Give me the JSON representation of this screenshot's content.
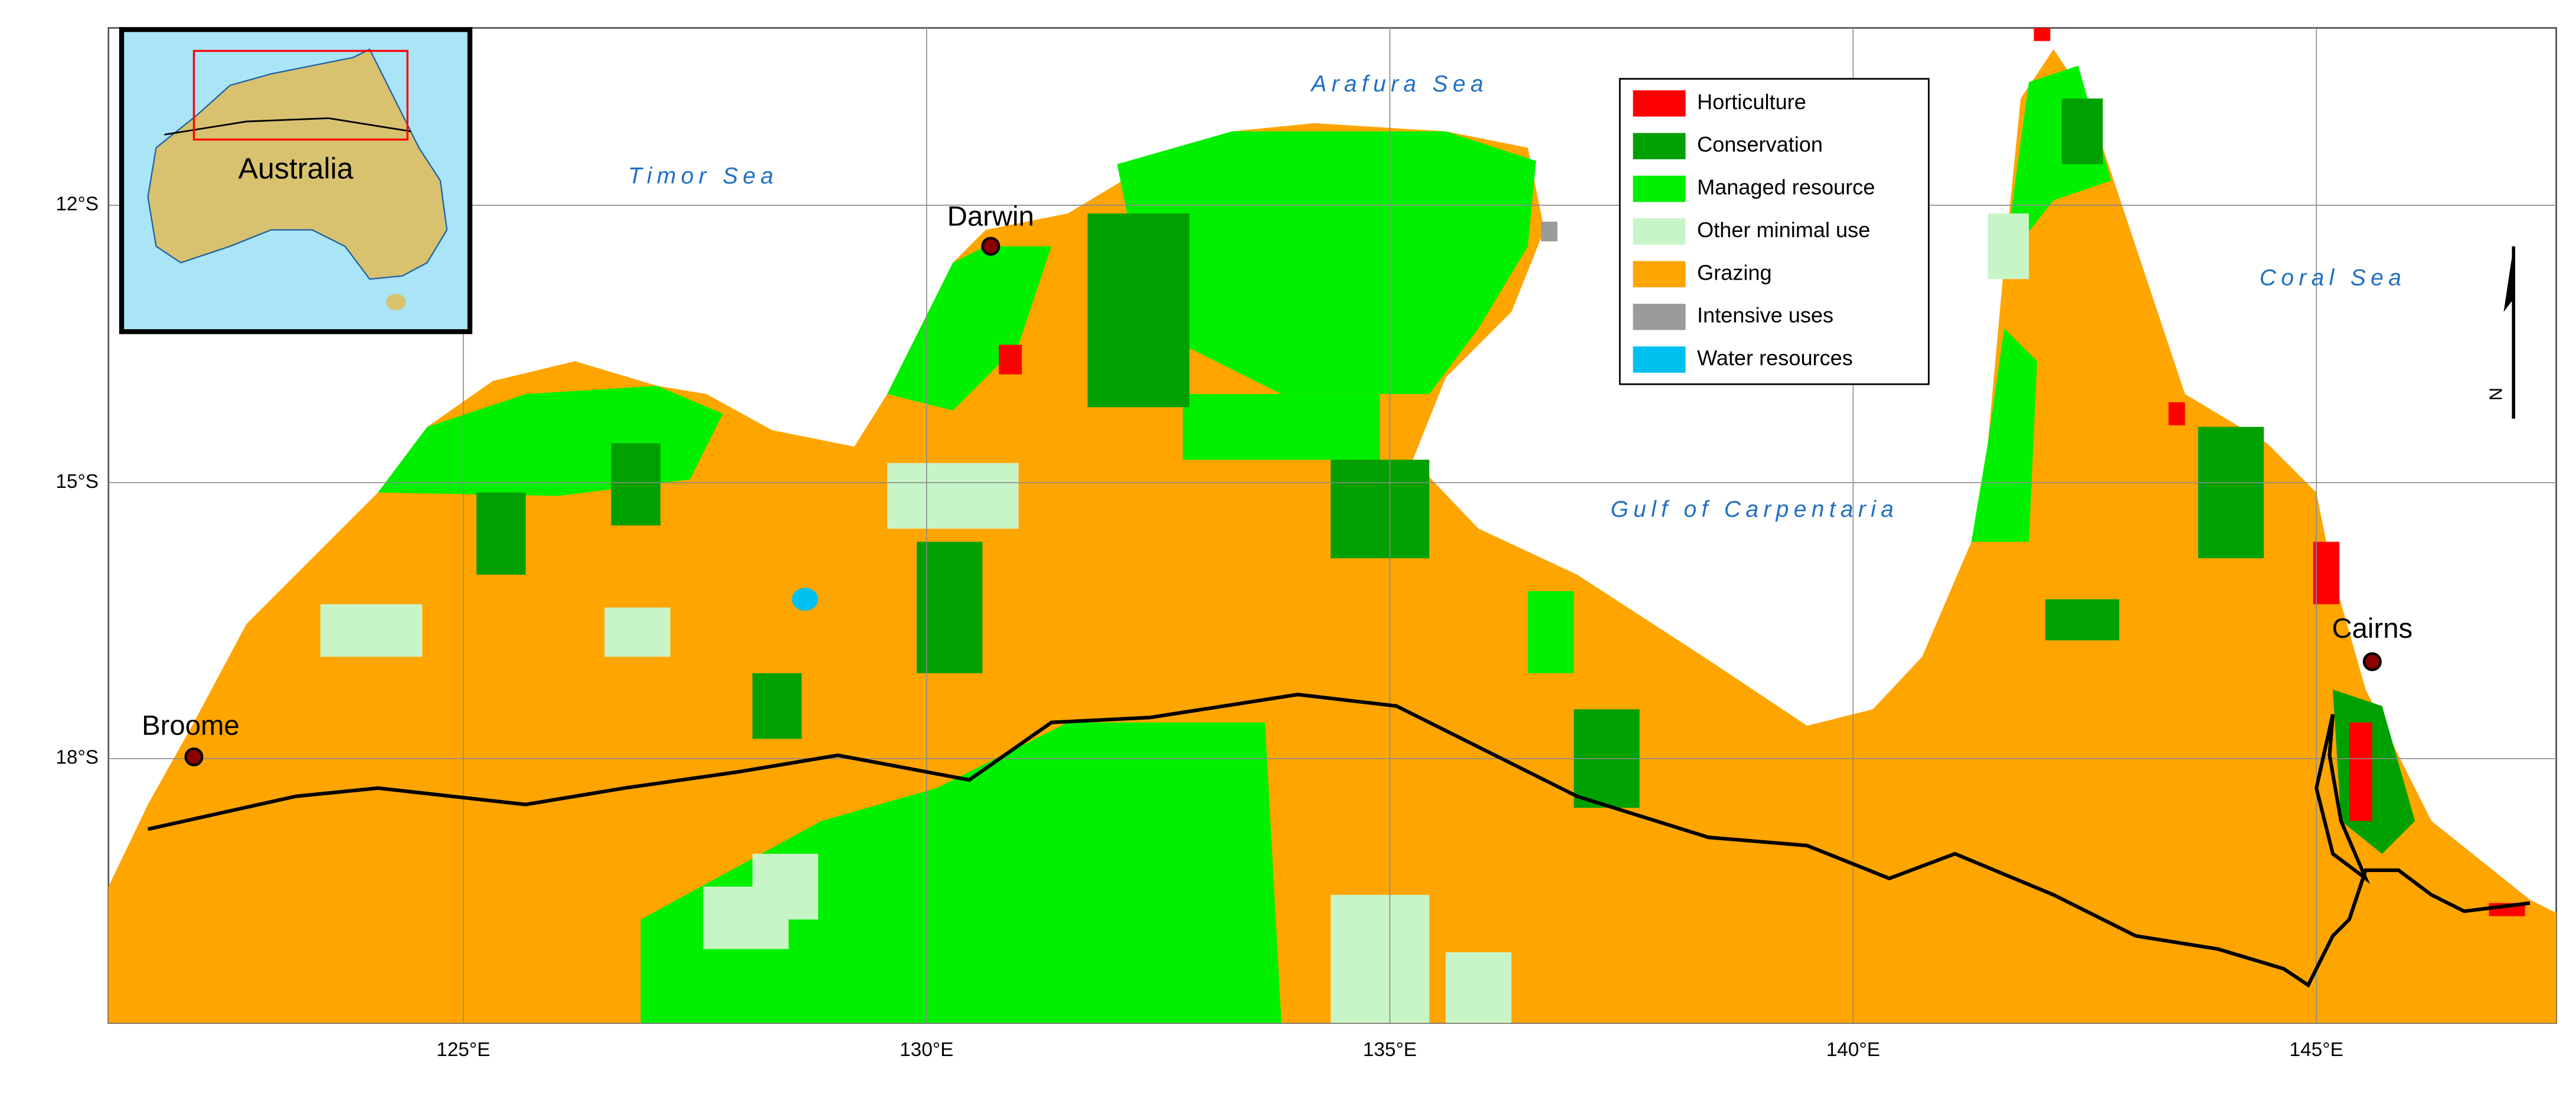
{
  "map": {
    "grid_labels": {
      "latitudes": [
        "12°S",
        "15°S",
        "18°S"
      ],
      "longitudes": [
        "125°E",
        "130°E",
        "135°E",
        "140°E",
        "145°E"
      ]
    },
    "seas": [
      "Timor Sea",
      "Arafura Sea",
      "Gulf of Carpentaria",
      "Coral Sea"
    ],
    "cities": [
      "Darwin",
      "Broome",
      "Cairns"
    ],
    "inset_label": "Australia",
    "north_label": "N"
  },
  "legend": {
    "items": [
      {
        "name": "Horticulture",
        "color": "#ff0000"
      },
      {
        "name": "Conservation",
        "color": "#00a000"
      },
      {
        "name": "Managed resource",
        "color": "#00f000"
      },
      {
        "name": "Other minimal use",
        "color": "#c8f5c8"
      },
      {
        "name": "Grazing",
        "color": "#ffa500"
      },
      {
        "name": "Intensive uses",
        "color": "#9b9b9b"
      },
      {
        "name": "Water resources",
        "color": "#00c0f0"
      }
    ]
  }
}
